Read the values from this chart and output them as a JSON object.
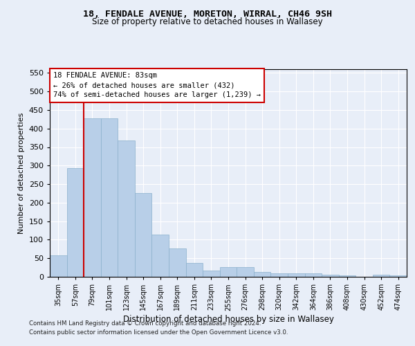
{
  "title1": "18, FENDALE AVENUE, MORETON, WIRRAL, CH46 9SH",
  "title2": "Size of property relative to detached houses in Wallasey",
  "xlabel": "Distribution of detached houses by size in Wallasey",
  "ylabel": "Number of detached properties",
  "categories": [
    "35sqm",
    "57sqm",
    "79sqm",
    "101sqm",
    "123sqm",
    "145sqm",
    "167sqm",
    "189sqm",
    "211sqm",
    "233sqm",
    "255sqm",
    "276sqm",
    "298sqm",
    "320sqm",
    "342sqm",
    "364sqm",
    "386sqm",
    "408sqm",
    "430sqm",
    "452sqm",
    "474sqm"
  ],
  "values": [
    57,
    293,
    428,
    428,
    367,
    225,
    113,
    76,
    38,
    17,
    27,
    27,
    14,
    9,
    9,
    9,
    5,
    3,
    0,
    6,
    4
  ],
  "bar_color": "#b8cfe8",
  "bar_edge_color": "#8ab0cc",
  "vline_color": "#cc0000",
  "vline_x": 1.5,
  "annotation_line1": "18 FENDALE AVENUE: 83sqm",
  "annotation_line2": "← 26% of detached houses are smaller (432)",
  "annotation_line3": "74% of semi-detached houses are larger (1,239) →",
  "ylim": [
    0,
    560
  ],
  "yticks": [
    0,
    50,
    100,
    150,
    200,
    250,
    300,
    350,
    400,
    450,
    500,
    550
  ],
  "bg_color": "#e8eef8",
  "grid_color": "#ffffff",
  "footer1": "Contains HM Land Registry data © Crown copyright and database right 2024.",
  "footer2": "Contains public sector information licensed under the Open Government Licence v3.0."
}
